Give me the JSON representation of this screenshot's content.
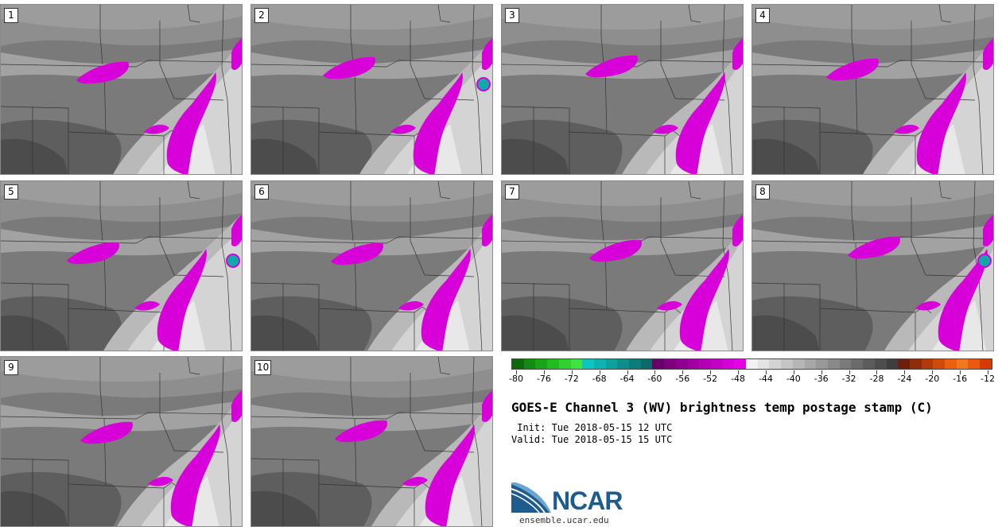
{
  "panels": [
    {
      "label": "1"
    },
    {
      "label": "2"
    },
    {
      "label": "3"
    },
    {
      "label": "4"
    },
    {
      "label": "5"
    },
    {
      "label": "6"
    },
    {
      "label": "7"
    },
    {
      "label": "8"
    },
    {
      "label": "9"
    },
    {
      "label": "10"
    }
  ],
  "colorbar": {
    "tick_labels": [
      "-80",
      "-76",
      "-72",
      "-68",
      "-64",
      "-60",
      "-56",
      "-52",
      "-48",
      "-44",
      "-40",
      "-36",
      "-32",
      "-28",
      "-24",
      "-20",
      "-16",
      "-12"
    ],
    "colors": [
      "#0b6b0b",
      "#138a13",
      "#1aa31a",
      "#22bb22",
      "#30d030",
      "#3fe33f",
      "#10c4c4",
      "#0fb2b2",
      "#0e9f9f",
      "#0d8d8d",
      "#0c7b7b",
      "#0a6a6a",
      "#6a006a",
      "#7c007c",
      "#8e008e",
      "#a000a0",
      "#b300b3",
      "#c500c5",
      "#d800d8",
      "#e600e6",
      "#f2f2f2",
      "#e3e3e3",
      "#d4d4d4",
      "#c5c5c5",
      "#b6b6b6",
      "#a7a7a7",
      "#989898",
      "#898989",
      "#7a7a7a",
      "#6b6b6b",
      "#5c5c5c",
      "#4d4d4d",
      "#3e3e3e",
      "#6e1f0a",
      "#8f2c0a",
      "#b03a0a",
      "#d04a0a",
      "#e86010",
      "#f07820",
      "#e85a10",
      "#d83a05"
    ]
  },
  "title": "GOES-E Channel 3 (WV) brightness temp postage stamp (C)",
  "init": " Init: Tue 2018-05-15 12 UTC",
  "valid": "Valid: Tue 2018-05-15 15 UTC",
  "logo_text": "NCAR",
  "site": "ensemble.ucar.edu",
  "colors": {
    "moist_purple": "#d800d8",
    "cold_cyan": "#10b0b0",
    "background_gray": "#7d7d7d",
    "logo_blue": "#1d5c8c"
  }
}
